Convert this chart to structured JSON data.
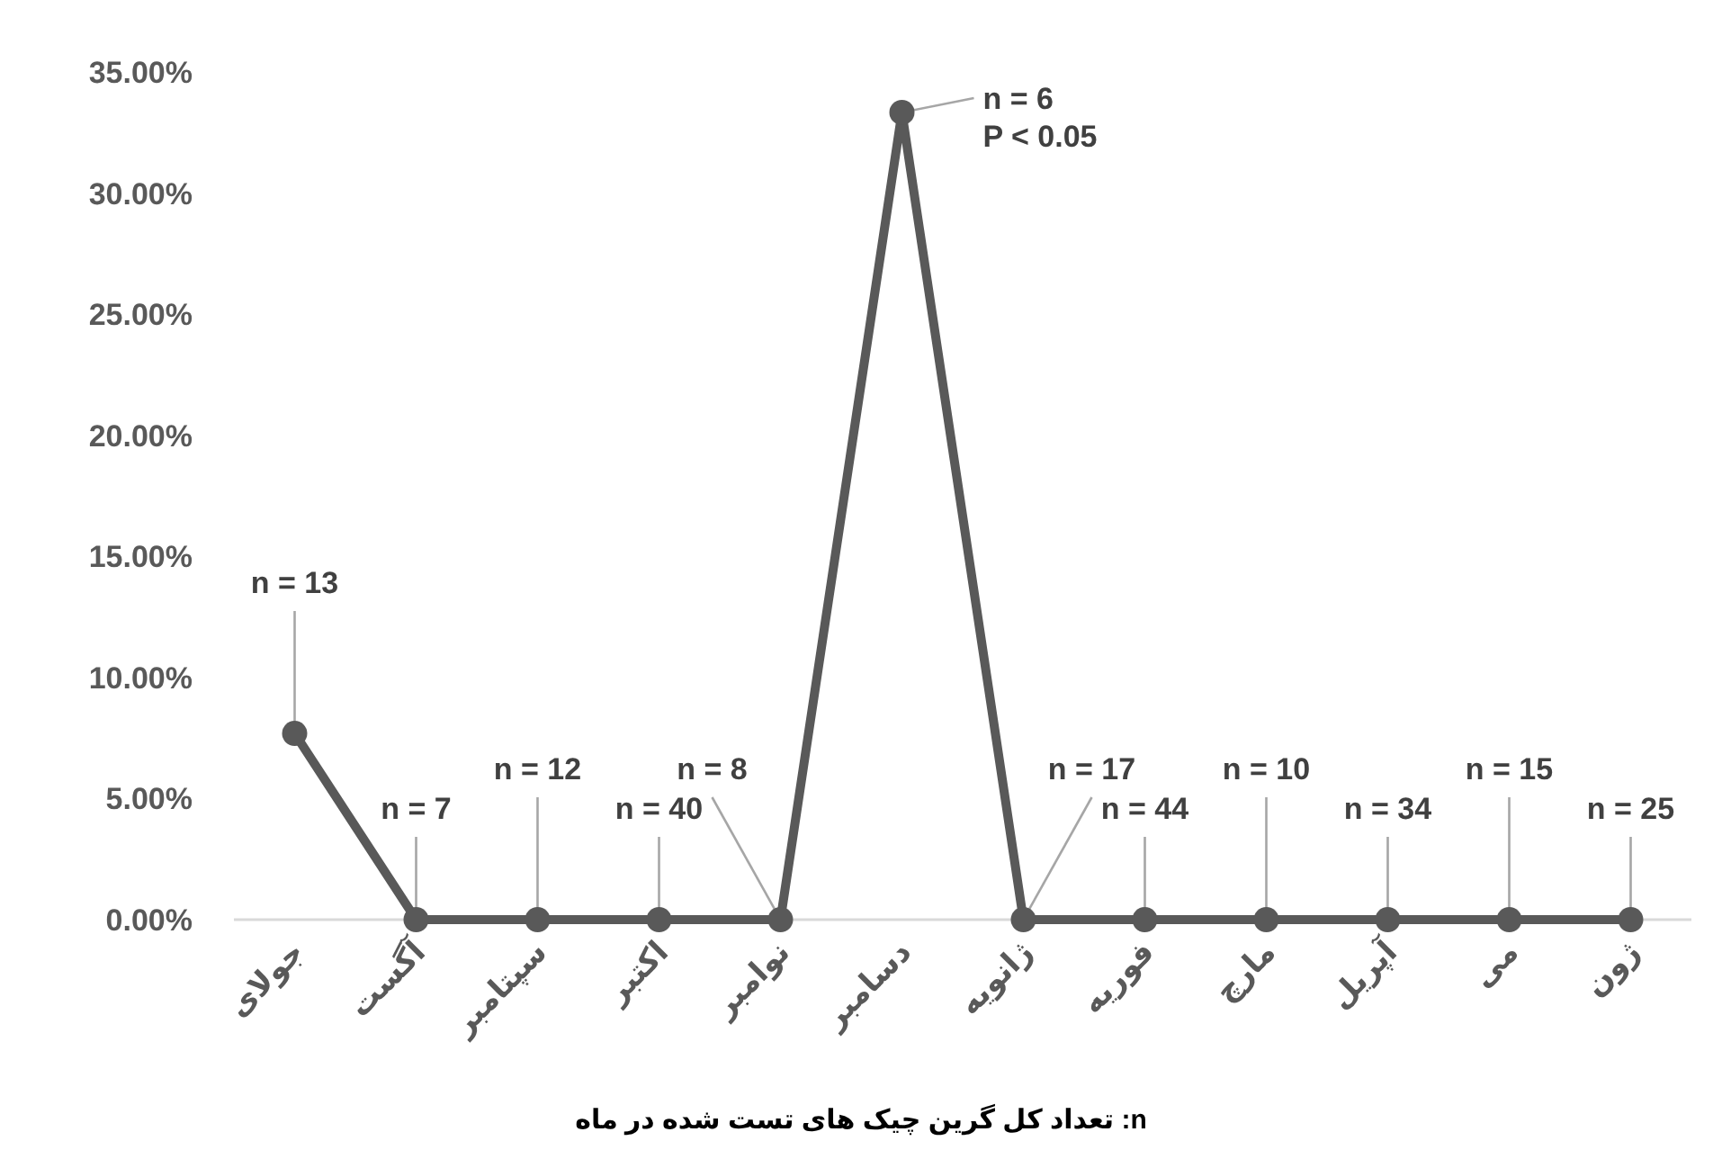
{
  "chart_data": {
    "type": "line",
    "categories": [
      "جولای",
      "آگست",
      "سپتامبر",
      "اکتبر",
      "نوامبر",
      "دسامبر",
      "ژانویه",
      "فوریه",
      "مارچ",
      "آپریل",
      "می",
      "ژون"
    ],
    "values": [
      7.69,
      0,
      0,
      0,
      0,
      33.33,
      0,
      0,
      0,
      0,
      0,
      0
    ],
    "color": "#595959",
    "marker": "circle",
    "line_style": "solid",
    "ylim": [
      0,
      35
    ],
    "yticks": [
      {
        "value": 0,
        "label": "0.00%"
      },
      {
        "value": 5,
        "label": "5.00%"
      },
      {
        "value": 10,
        "label": "10.00%"
      },
      {
        "value": 15,
        "label": "15.00%"
      },
      {
        "value": 20,
        "label": "20.00%"
      },
      {
        "value": 25,
        "label": "25.00%"
      },
      {
        "value": 30,
        "label": "30.00%"
      },
      {
        "value": 35,
        "label": "35.00%"
      }
    ],
    "grid": false,
    "annotations": [
      {
        "text": "n = 13",
        "x": "جولای",
        "y": 7.69
      },
      {
        "text": "n = 7",
        "x": "آگست",
        "y": 0
      },
      {
        "text": "n = 12",
        "x": "سپتامبر",
        "y": 0
      },
      {
        "text": "n = 40",
        "x": "اکتبر",
        "y": 0
      },
      {
        "text": "n = 8",
        "x": "نوامبر",
        "y": 0
      },
      {
        "text": "n = 6\nP < 0.05",
        "x": "دسامبر",
        "y": 33.33
      },
      {
        "text": "n = 17",
        "x": "ژانویه",
        "y": 0
      },
      {
        "text": "n = 44",
        "x": "فوریه",
        "y": 0
      },
      {
        "text": "n = 10",
        "x": "مارچ",
        "y": 0
      },
      {
        "text": "n = 34",
        "x": "آپریل",
        "y": 0
      },
      {
        "text": "n = 15",
        "x": "می",
        "y": 0
      },
      {
        "text": "n = 25",
        "x": "ژون",
        "y": 0
      },
      "n: تعداد کل گرین چیک های تست شده در ماه"
    ]
  }
}
